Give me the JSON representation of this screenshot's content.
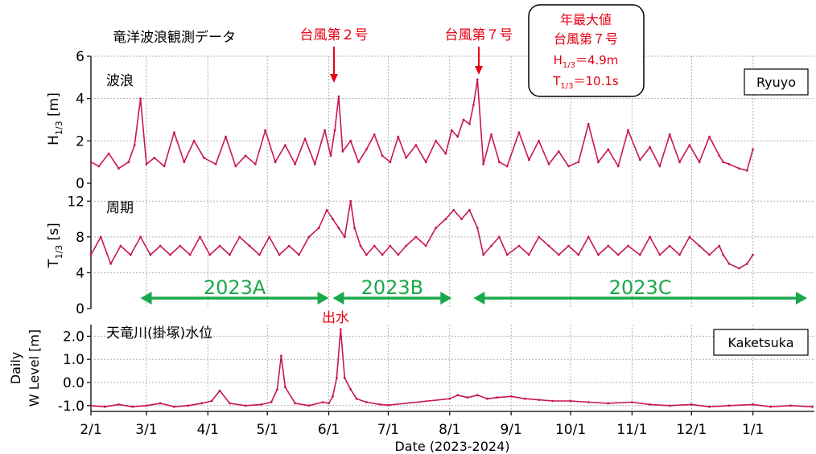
{
  "chart_data": [
    {
      "type": "line",
      "panel": "wave_height",
      "title": "竜洋波浪観測データ",
      "panel_label": "波浪",
      "station": "Ryuyo",
      "ylabel_main": "H",
      "ylabel_sub": "1/3",
      "ylabel_unit": " [m]",
      "ylim": [
        0,
        6
      ],
      "yticks": [
        "0",
        "2",
        "4",
        "6"
      ],
      "grid": true,
      "color": "#c8155a",
      "series": [
        {
          "x": [
            "2/1",
            "2/5",
            "2/10",
            "2/15",
            "2/20",
            "2/23",
            "2/26",
            "3/1",
            "3/5",
            "3/10",
            "3/15",
            "3/20",
            "3/25",
            "3/30",
            "4/5",
            "4/10",
            "4/15",
            "4/20",
            "4/25",
            "4/30",
            "5/5",
            "5/10",
            "5/15",
            "5/20",
            "5/25",
            "5/30",
            "6/2",
            "6/4",
            "6/6",
            "6/8",
            "6/12",
            "6/16",
            "6/20",
            "6/24",
            "6/28",
            "7/2",
            "7/6",
            "7/10",
            "7/15",
            "7/20",
            "7/25",
            "7/30",
            "8/2",
            "8/5",
            "8/8",
            "8/11",
            "8/13",
            "8/15",
            "8/18",
            "8/22",
            "8/26",
            "8/30",
            "9/5",
            "9/10",
            "9/15",
            "9/20",
            "9/25",
            "9/30",
            "10/5",
            "10/10",
            "10/15",
            "10/20",
            "10/25",
            "10/30",
            "11/5",
            "11/10",
            "11/15",
            "11/20",
            "11/25",
            "11/30",
            "12/5",
            "12/10",
            "12/15",
            "12/17",
            "12/20",
            "12/25",
            "12/29",
            "1/1"
          ],
          "values": [
            1.0,
            0.8,
            1.4,
            0.7,
            1.0,
            1.8,
            4.0,
            0.9,
            1.2,
            0.8,
            2.4,
            1.0,
            2.0,
            1.2,
            0.9,
            2.2,
            0.8,
            1.3,
            0.9,
            2.5,
            1.0,
            1.8,
            0.9,
            2.1,
            0.9,
            2.5,
            1.3,
            2.5,
            4.1,
            1.5,
            2.0,
            1.0,
            1.6,
            2.3,
            1.3,
            1.0,
            2.2,
            1.2,
            1.8,
            1.0,
            2.0,
            1.4,
            2.5,
            2.2,
            3.0,
            2.8,
            3.7,
            4.9,
            0.9,
            2.3,
            1.0,
            0.8,
            2.4,
            1.1,
            2.0,
            0.9,
            1.5,
            0.8,
            1.0,
            2.8,
            1.0,
            1.6,
            0.8,
            2.5,
            1.1,
            1.7,
            0.8,
            2.3,
            1.0,
            1.8,
            1.0,
            2.2,
            1.3,
            1.0,
            0.9,
            0.7,
            0.6,
            1.6
          ]
        }
      ],
      "annotations": [
        {
          "text": "台風第２号",
          "x": "6/7",
          "y": 4.1
        },
        {
          "text": "台風第７号",
          "x": "8/16",
          "y": 4.9
        }
      ],
      "callout": {
        "line1": "年最大値",
        "line2": "台風第７号",
        "line3_main": "H",
        "line3_sub": "1/3",
        "line3_value": "＝4.9m",
        "line4_main": "T",
        "line4_sub": "1/3",
        "line4_value": "＝10.1s"
      }
    },
    {
      "type": "line",
      "panel": "wave_period",
      "panel_label": "周期",
      "ylabel_main": "T",
      "ylabel_sub": "1/3",
      "ylabel_unit": " [s]",
      "ylim": [
        0,
        14
      ],
      "yticks": [
        "0",
        "4",
        "8",
        "12"
      ],
      "grid": true,
      "color": "#c8155a",
      "series": [
        {
          "x": [
            "2/1",
            "2/6",
            "2/11",
            "2/16",
            "2/21",
            "2/26",
            "3/3",
            "3/8",
            "3/13",
            "3/18",
            "3/23",
            "3/28",
            "4/2",
            "4/7",
            "4/12",
            "4/17",
            "4/22",
            "4/27",
            "5/2",
            "5/7",
            "5/12",
            "5/17",
            "5/22",
            "5/27",
            "5/31",
            "6/3",
            "6/6",
            "6/9",
            "6/12",
            "6/14",
            "6/17",
            "6/20",
            "6/24",
            "6/28",
            "7/2",
            "7/6",
            "7/10",
            "7/15",
            "7/20",
            "7/25",
            "7/30",
            "8/3",
            "8/7",
            "8/11",
            "8/15",
            "8/18",
            "8/22",
            "8/26",
            "8/30",
            "9/5",
            "9/10",
            "9/15",
            "9/20",
            "9/25",
            "9/30",
            "10/5",
            "10/10",
            "10/15",
            "10/20",
            "10/25",
            "10/30",
            "11/5",
            "11/10",
            "11/15",
            "11/20",
            "11/25",
            "11/30",
            "12/5",
            "12/10",
            "12/15",
            "12/17",
            "12/20",
            "12/25",
            "12/29",
            "1/1"
          ],
          "values": [
            6,
            8,
            5,
            7,
            6,
            8,
            6,
            7,
            6,
            7,
            6,
            8,
            6,
            7,
            6,
            8,
            7,
            6,
            8,
            6,
            7,
            6,
            8,
            9,
            11,
            10,
            9,
            8,
            12,
            9,
            7,
            6,
            7,
            6,
            7,
            6,
            7,
            8,
            7,
            9,
            10,
            11,
            10,
            11,
            9,
            6,
            7,
            8,
            6,
            7,
            6,
            8,
            7,
            6,
            7,
            6,
            8,
            6,
            7,
            6,
            7,
            6,
            8,
            6,
            7,
            6,
            8,
            7,
            6,
            7,
            6,
            5,
            4.5,
            5,
            6
          ]
        }
      ],
      "periods": [
        {
          "label": "2023A",
          "start": "2/26",
          "end": "6/1"
        },
        {
          "label": "2023B",
          "start": "6/3",
          "end": "8/2"
        },
        {
          "label": "2023C",
          "start": "8/13",
          "end": "1/31"
        }
      ],
      "flood_label": "出水"
    },
    {
      "type": "line",
      "panel": "river_level",
      "panel_label": "天竜川(掛塚)水位",
      "station": "Kaketsuka",
      "ylabel_line1": "Daily",
      "ylabel_line2": "W Level [m]",
      "ylim": [
        -1.25,
        2.5
      ],
      "yticks": [
        "-1.0",
        "0.0",
        "1.0",
        "2.0"
      ],
      "grid": true,
      "color": "#c8155a",
      "series": [
        {
          "x": [
            "2/1",
            "2/8",
            "2/15",
            "2/22",
            "3/1",
            "3/8",
            "3/15",
            "3/22",
            "3/29",
            "4/3",
            "4/7",
            "4/12",
            "4/20",
            "4/28",
            "5/3",
            "5/6",
            "5/8",
            "5/10",
            "5/15",
            "5/22",
            "5/29",
            "6/1",
            "6/3",
            "6/5",
            "6/7",
            "6/9",
            "6/12",
            "6/15",
            "6/20",
            "6/27",
            "7/1",
            "8/1",
            "8/5",
            "8/10",
            "8/15",
            "8/20",
            "8/25",
            "9/1",
            "9/8",
            "9/15",
            "9/22",
            "10/1",
            "10/10",
            "10/20",
            "11/1",
            "11/10",
            "11/20",
            "12/1",
            "12/10",
            "12/20",
            "1/1",
            "1/10",
            "1/20",
            "1/31"
          ],
          "values": [
            -1.0,
            -1.05,
            -0.95,
            -1.05,
            -1.0,
            -0.9,
            -1.05,
            -1.0,
            -0.9,
            -0.8,
            -0.35,
            -0.9,
            -1.0,
            -0.95,
            -0.85,
            -0.3,
            1.15,
            -0.2,
            -0.9,
            -1.0,
            -0.85,
            -0.9,
            -0.6,
            0.2,
            2.3,
            0.2,
            -0.3,
            -0.7,
            -0.85,
            -0.95,
            -0.98,
            -0.7,
            -0.55,
            -0.65,
            -0.55,
            -0.7,
            -0.65,
            -0.6,
            -0.7,
            -0.75,
            -0.8,
            -0.8,
            -0.85,
            -0.9,
            -0.85,
            -0.95,
            -1.0,
            -0.95,
            -1.05,
            -1.0,
            -0.95,
            -1.05,
            -1.0,
            -1.05
          ]
        }
      ]
    }
  ],
  "x_axis": {
    "label": "Date (2023-2024)",
    "ticks": [
      "2/1",
      "3/1",
      "4/1",
      "5/1",
      "6/1",
      "7/1",
      "8/1",
      "9/1",
      "10/1",
      "11/1",
      "12/1",
      "1/1"
    ]
  }
}
